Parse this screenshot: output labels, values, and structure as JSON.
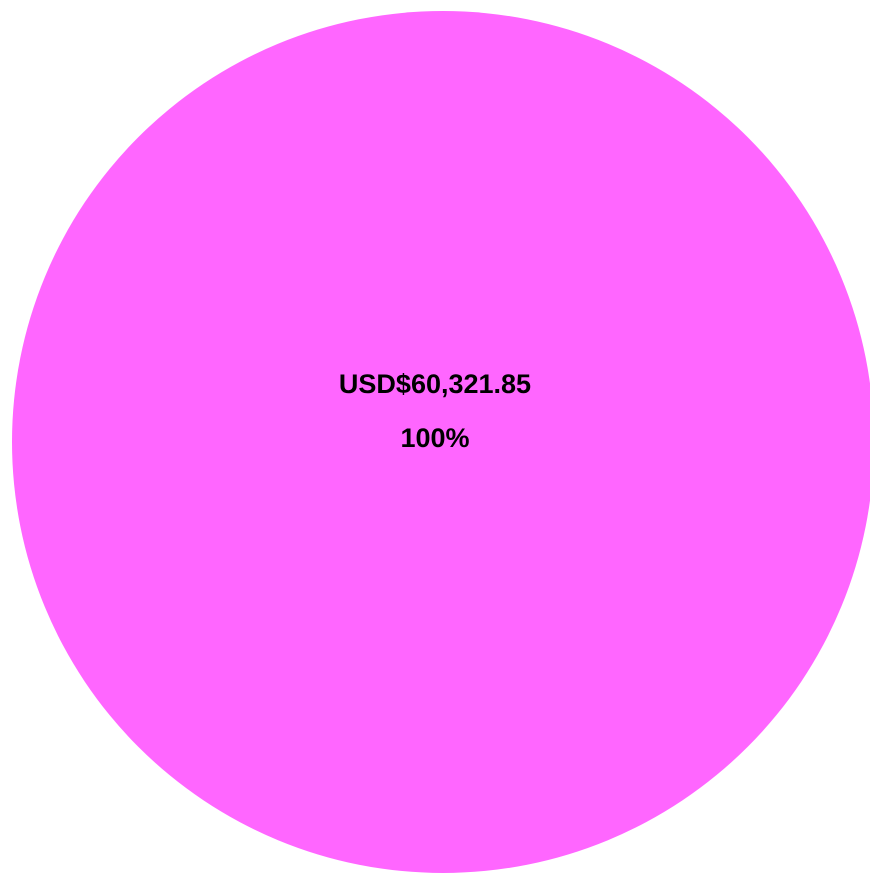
{
  "chart_data": {
    "type": "pie",
    "values": [
      60321.85
    ],
    "value_labels": [
      "USD$60,321.85"
    ],
    "percents": [
      100
    ],
    "percent_labels": [
      "100%"
    ],
    "colors": [
      "#ff66ff"
    ]
  }
}
